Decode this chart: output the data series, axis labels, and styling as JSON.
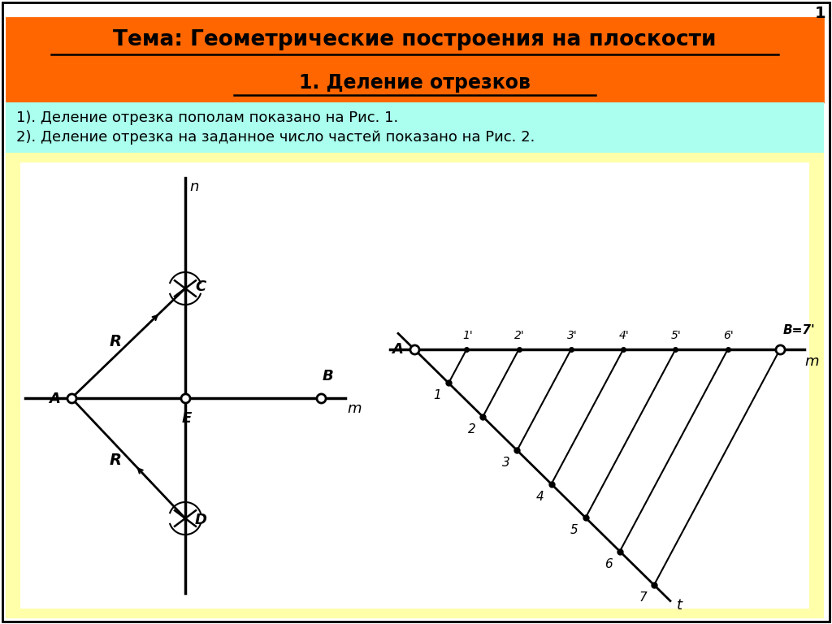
{
  "title1": "Тема: Геометрические построения на плоскости",
  "title2": "1. Деление отрезков",
  "text_line1": "1). Деление отрезка пополам показано на Рис. 1.",
  "text_line2": "2). Деление отрезка на заданное число частей показано на Рис. 2.",
  "bg_color": "#ffffff",
  "header_color": "#FF6600",
  "text_bg_color": "#aaffee",
  "diagram_bg_color": "#ffffaa",
  "page_number": "1",
  "header1_fontsize": 19,
  "header2_fontsize": 17,
  "text_fontsize": 13
}
